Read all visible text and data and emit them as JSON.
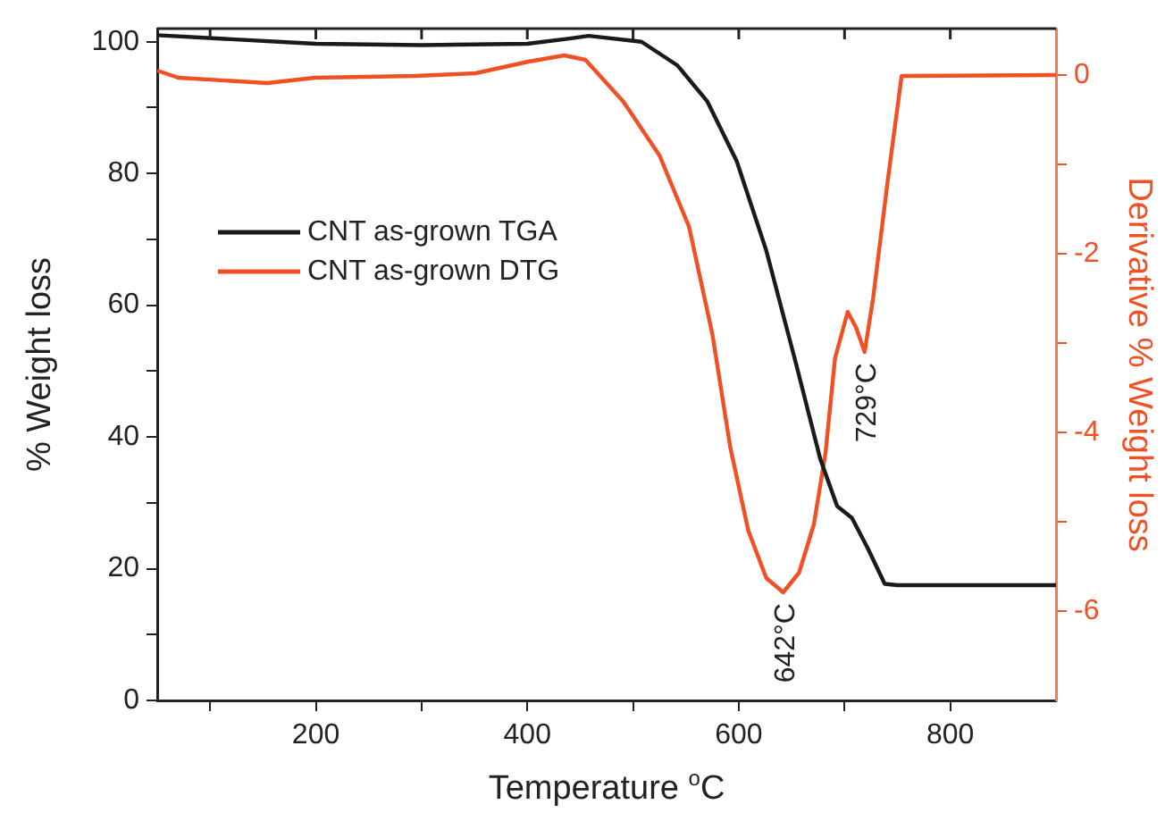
{
  "chart_data": {
    "type": "line",
    "xlabel": "Temperature $^{o}$C",
    "ylabel": "% Weight loss",
    "y2label": "Derivative % Weight loss",
    "xlim": [
      50,
      900
    ],
    "xticks": [
      {
        "value": 100,
        "label": null
      },
      200,
      {
        "value": 300,
        "label": null
      },
      400,
      {
        "value": 500,
        "label": null
      },
      600,
      {
        "value": 700,
        "label": null
      },
      800
    ],
    "ylim": [
      0,
      102
    ],
    "yticks": [
      0,
      {
        "value": 10,
        "label": null
      },
      20,
      {
        "value": 30,
        "label": null
      },
      40,
      {
        "value": 50,
        "label": null
      },
      60,
      {
        "value": 70,
        "label": null
      },
      80,
      {
        "value": 90,
        "label": null
      },
      100
    ],
    "y2lim": [
      -7,
      0.52
    ],
    "y2ticks": [
      -6,
      {
        "value": -5,
        "label": null
      },
      -4,
      {
        "value": -3,
        "label": null
      },
      -2,
      {
        "value": -1,
        "label": null
      },
      0
    ],
    "grid": false,
    "legend": "top left",
    "marker": "none",
    "line_style": "solid",
    "series": [
      {
        "name": "CNT as-grown TGA",
        "color": "#1a1a1a",
        "x": [
          50,
          200,
          300,
          400,
          440,
          458,
          508,
          542,
          570,
          598,
          626,
          654,
          677,
          693,
          707,
          722,
          738,
          750,
          900
        ],
        "values": [
          101,
          99.7,
          99.5,
          99.7,
          100.5,
          100.9,
          100,
          96.4,
          91,
          81.9,
          68.3,
          51.2,
          36.7,
          29.5,
          27.7,
          23.1,
          17.7,
          17.5,
          17.5
        ]
      },
      {
        "name": "CNT as-grown DTG",
        "color": "#f05024",
        "axis": "y2",
        "x": [
          50,
          70,
          154,
          199,
          294,
          351,
          401,
          435,
          455,
          491,
          525,
          553,
          575,
          592,
          609,
          626,
          642,
          657,
          671,
          682,
          691,
          703,
          711,
          719,
          727,
          741,
          754,
          900
        ],
        "values": [
          0.05,
          -0.03,
          -0.09,
          -0.03,
          -0.01,
          0.02,
          0.15,
          0.22,
          0.17,
          -0.3,
          -0.9,
          -1.7,
          -2.9,
          -4.17,
          -5.1,
          -5.63,
          -5.79,
          -5.57,
          -5.03,
          -4.23,
          -3.17,
          -2.65,
          -2.83,
          -3.1,
          -2.5,
          -1.17,
          -0.01,
          0
        ]
      }
    ],
    "annotations": [
      "642°C",
      "729°C"
    ]
  }
}
